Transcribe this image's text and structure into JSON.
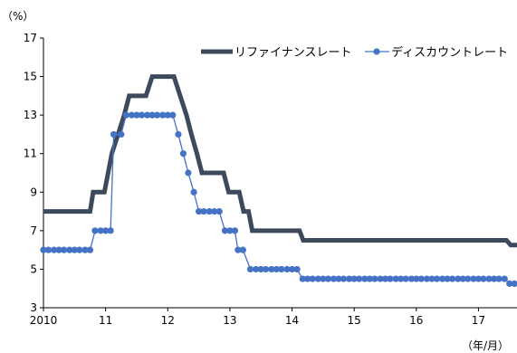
{
  "chart_data": {
    "type": "line",
    "y_unit_label": "（%）",
    "x_unit_label": "（年/月）",
    "ylim": [
      3,
      17
    ],
    "yticks": [
      3,
      5,
      7,
      9,
      11,
      13,
      15,
      17
    ],
    "xlim": [
      2010.0,
      2017.62
    ],
    "xticks": [
      {
        "value": 2010,
        "label": "2010"
      },
      {
        "value": 2011,
        "label": "11"
      },
      {
        "value": 2012,
        "label": "12"
      },
      {
        "value": 2013,
        "label": "13"
      },
      {
        "value": 2014,
        "label": "14"
      },
      {
        "value": 2015,
        "label": "15"
      },
      {
        "value": 2016,
        "label": "16"
      },
      {
        "value": 2017,
        "label": "17"
      }
    ],
    "grid": false,
    "legend_position": "top-right",
    "series": [
      {
        "name": "リファイナンスレート",
        "color": "#3c4a5c",
        "style": "thick-line",
        "points": [
          [
            2010.0,
            8
          ],
          [
            2010.75,
            8
          ],
          [
            2010.8,
            9
          ],
          [
            2010.98,
            9
          ],
          [
            2011.1,
            11
          ],
          [
            2011.2,
            12
          ],
          [
            2011.3,
            13
          ],
          [
            2011.38,
            14
          ],
          [
            2011.65,
            14
          ],
          [
            2011.75,
            15
          ],
          [
            2012.1,
            15
          ],
          [
            2012.2,
            14
          ],
          [
            2012.3,
            13
          ],
          [
            2012.38,
            12
          ],
          [
            2012.47,
            11
          ],
          [
            2012.55,
            10
          ],
          [
            2012.9,
            10
          ],
          [
            2012.98,
            9
          ],
          [
            2013.15,
            9
          ],
          [
            2013.22,
            8
          ],
          [
            2013.3,
            8
          ],
          [
            2013.36,
            7
          ],
          [
            2014.12,
            7
          ],
          [
            2014.18,
            6.5
          ],
          [
            2017.45,
            6.5
          ],
          [
            2017.52,
            6.25
          ],
          [
            2017.62,
            6.25
          ]
        ]
      },
      {
        "name": "ディスカウントレート",
        "color": "#4472c4",
        "style": "line-with-markers",
        "points": [
          [
            2010.0,
            6
          ],
          [
            2010.08,
            6
          ],
          [
            2010.17,
            6
          ],
          [
            2010.25,
            6
          ],
          [
            2010.33,
            6
          ],
          [
            2010.42,
            6
          ],
          [
            2010.5,
            6
          ],
          [
            2010.58,
            6
          ],
          [
            2010.67,
            6
          ],
          [
            2010.75,
            6
          ],
          [
            2010.83,
            7
          ],
          [
            2010.92,
            7
          ],
          [
            2011.0,
            7
          ],
          [
            2011.08,
            7
          ],
          [
            2011.13,
            12
          ],
          [
            2011.25,
            12
          ],
          [
            2011.33,
            13
          ],
          [
            2011.42,
            13
          ],
          [
            2011.5,
            13
          ],
          [
            2011.58,
            13
          ],
          [
            2011.67,
            13
          ],
          [
            2011.75,
            13
          ],
          [
            2011.83,
            13
          ],
          [
            2011.92,
            13
          ],
          [
            2012.0,
            13
          ],
          [
            2012.08,
            13
          ],
          [
            2012.17,
            12
          ],
          [
            2012.25,
            11
          ],
          [
            2012.33,
            10
          ],
          [
            2012.42,
            9
          ],
          [
            2012.5,
            8
          ],
          [
            2012.58,
            8
          ],
          [
            2012.67,
            8
          ],
          [
            2012.75,
            8
          ],
          [
            2012.83,
            8
          ],
          [
            2012.92,
            7
          ],
          [
            2013.0,
            7
          ],
          [
            2013.08,
            7
          ],
          [
            2013.13,
            6
          ],
          [
            2013.21,
            6
          ],
          [
            2013.33,
            5
          ],
          [
            2013.42,
            5
          ],
          [
            2013.5,
            5
          ],
          [
            2013.58,
            5
          ],
          [
            2013.67,
            5
          ],
          [
            2013.75,
            5
          ],
          [
            2013.83,
            5
          ],
          [
            2013.92,
            5
          ],
          [
            2014.0,
            5
          ],
          [
            2014.08,
            5
          ],
          [
            2014.17,
            4.5
          ],
          [
            2014.25,
            4.5
          ],
          [
            2014.33,
            4.5
          ],
          [
            2014.42,
            4.5
          ],
          [
            2014.5,
            4.5
          ],
          [
            2014.58,
            4.5
          ],
          [
            2014.67,
            4.5
          ],
          [
            2014.75,
            4.5
          ],
          [
            2014.83,
            4.5
          ],
          [
            2014.92,
            4.5
          ],
          [
            2015.0,
            4.5
          ],
          [
            2015.08,
            4.5
          ],
          [
            2015.17,
            4.5
          ],
          [
            2015.25,
            4.5
          ],
          [
            2015.33,
            4.5
          ],
          [
            2015.42,
            4.5
          ],
          [
            2015.5,
            4.5
          ],
          [
            2015.58,
            4.5
          ],
          [
            2015.67,
            4.5
          ],
          [
            2015.75,
            4.5
          ],
          [
            2015.83,
            4.5
          ],
          [
            2015.92,
            4.5
          ],
          [
            2016.0,
            4.5
          ],
          [
            2016.08,
            4.5
          ],
          [
            2016.17,
            4.5
          ],
          [
            2016.25,
            4.5
          ],
          [
            2016.33,
            4.5
          ],
          [
            2016.42,
            4.5
          ],
          [
            2016.5,
            4.5
          ],
          [
            2016.58,
            4.5
          ],
          [
            2016.67,
            4.5
          ],
          [
            2016.75,
            4.5
          ],
          [
            2016.83,
            4.5
          ],
          [
            2016.92,
            4.5
          ],
          [
            2017.0,
            4.5
          ],
          [
            2017.08,
            4.5
          ],
          [
            2017.17,
            4.5
          ],
          [
            2017.25,
            4.5
          ],
          [
            2017.33,
            4.5
          ],
          [
            2017.42,
            4.5
          ],
          [
            2017.5,
            4.25
          ],
          [
            2017.58,
            4.25
          ]
        ]
      }
    ]
  }
}
